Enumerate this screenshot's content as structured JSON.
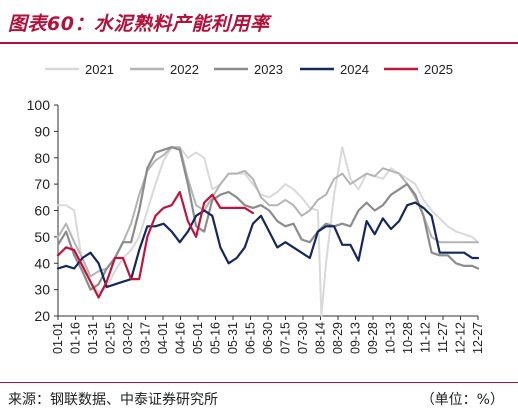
{
  "header": {
    "title": "图表60：水泥熟料产能利用率"
  },
  "footer": {
    "source": "来源：钢联数据、中泰证券研究所",
    "unit": "（单位：%）"
  },
  "chart_data": {
    "type": "line",
    "title": "图表60：水泥熟料产能利用率",
    "xlabel": "",
    "ylabel": "",
    "ylim": [
      20,
      100
    ],
    "yticks": [
      20,
      30,
      40,
      50,
      60,
      70,
      80,
      90,
      100
    ],
    "x_domain_days": [
      0,
      362
    ],
    "legend_position": "top",
    "grid": false,
    "xtick_labels": [
      "01-01",
      "01-16",
      "01-31",
      "02-15",
      "03-02",
      "03-17",
      "04-01",
      "04-16",
      "05-01",
      "05-16",
      "05-31",
      "06-15",
      "06-30",
      "07-15",
      "07-30",
      "08-14",
      "08-29",
      "09-13",
      "09-28",
      "10-13",
      "10-28",
      "11-12",
      "11-27",
      "12-12",
      "12-27"
    ],
    "series": [
      {
        "name": "2021",
        "color": "#d9d9d9",
        "width": 2,
        "x": [
          0,
          7,
          14,
          21,
          28,
          35,
          42,
          49,
          56,
          63,
          70,
          77,
          84,
          91,
          98,
          105,
          112,
          119,
          126,
          133,
          140,
          147,
          154,
          161,
          168,
          175,
          182,
          189,
          196,
          203,
          210,
          217,
          224,
          227,
          231,
          238,
          245,
          252,
          259,
          266,
          273,
          280,
          287,
          294,
          301,
          308,
          315,
          322,
          329,
          336,
          343,
          350,
          357,
          362
        ],
        "y": [
          62,
          62,
          60,
          40,
          33,
          29,
          31,
          37,
          42,
          45,
          50,
          60,
          70,
          79,
          84,
          84,
          80,
          82,
          80,
          68,
          70,
          74,
          74,
          74,
          70,
          66,
          65,
          67,
          70,
          68,
          65,
          61,
          60,
          20,
          40,
          66,
          84,
          72,
          68,
          74,
          73,
          72,
          76,
          74,
          72,
          70,
          64,
          60,
          57,
          54,
          52,
          51,
          50,
          48
        ]
      },
      {
        "name": "2022",
        "color": "#b4b4b4",
        "width": 2,
        "x": [
          0,
          7,
          14,
          21,
          28,
          35,
          42,
          49,
          56,
          63,
          70,
          77,
          84,
          91,
          98,
          105,
          112,
          119,
          126,
          133,
          140,
          147,
          154,
          161,
          168,
          175,
          182,
          189,
          196,
          203,
          210,
          217,
          224,
          231,
          238,
          245,
          252,
          259,
          266,
          273,
          280,
          287,
          294,
          301,
          308,
          315,
          322,
          329,
          336,
          343,
          350,
          357,
          362
        ],
        "y": [
          50,
          55,
          48,
          42,
          35,
          37,
          38,
          42,
          48,
          55,
          66,
          75,
          79,
          81,
          84,
          84,
          72,
          62,
          60,
          65,
          70,
          74,
          74,
          75,
          72,
          65,
          62,
          62,
          64,
          62,
          58,
          60,
          64,
          66,
          72,
          74,
          70,
          72,
          74,
          73,
          76,
          75,
          74,
          70,
          65,
          58,
          50,
          48,
          48,
          48,
          48,
          48,
          48
        ]
      },
      {
        "name": "2023",
        "color": "#8c8c8c",
        "width": 2.2,
        "x": [
          0,
          7,
          14,
          21,
          28,
          35,
          42,
          49,
          56,
          63,
          70,
          77,
          84,
          91,
          98,
          105,
          112,
          119,
          126,
          133,
          140,
          147,
          154,
          161,
          168,
          175,
          182,
          189,
          196,
          203,
          210,
          217,
          224,
          231,
          238,
          245,
          252,
          259,
          266,
          273,
          280,
          287,
          294,
          301,
          308,
          315,
          322,
          329,
          336,
          343,
          350,
          357,
          362
        ],
        "y": [
          47,
          52,
          43,
          37,
          30,
          32,
          38,
          42,
          48,
          48,
          60,
          76,
          82,
          83,
          84,
          83,
          70,
          54,
          52,
          64,
          66,
          67,
          65,
          62,
          61,
          62,
          60,
          56,
          54,
          55,
          49,
          48,
          52,
          55,
          54,
          55,
          54,
          60,
          63,
          60,
          62,
          66,
          68,
          70,
          66,
          58,
          44,
          43,
          43,
          40,
          39,
          39,
          38
        ]
      },
      {
        "name": "2024",
        "color": "#13285c",
        "width": 2.2,
        "x": [
          0,
          7,
          14,
          21,
          28,
          35,
          42,
          49,
          56,
          63,
          70,
          77,
          84,
          91,
          98,
          105,
          112,
          119,
          126,
          133,
          140,
          147,
          154,
          161,
          168,
          175,
          182,
          189,
          196,
          203,
          210,
          217,
          224,
          231,
          238,
          245,
          252,
          259,
          266,
          273,
          280,
          287,
          294,
          301,
          308,
          315,
          322,
          329,
          336,
          343,
          350,
          357,
          362
        ],
        "y": [
          38,
          39,
          38,
          42,
          44,
          40,
          31,
          32,
          33,
          34,
          45,
          54,
          54,
          55,
          52,
          48,
          52,
          58,
          60,
          58,
          46,
          40,
          42,
          46,
          55,
          58,
          52,
          46,
          48,
          46,
          44,
          42,
          52,
          54,
          54,
          47,
          47,
          41,
          56,
          51,
          57,
          53,
          56,
          62,
          63,
          61,
          58,
          44,
          44,
          44,
          44,
          42,
          42
        ]
      },
      {
        "name": "2025",
        "color": "#c0143c",
        "width": 2.2,
        "x": [
          0,
          7,
          14,
          21,
          28,
          35,
          42,
          49,
          56,
          63,
          70,
          77,
          84,
          91,
          98,
          105,
          112,
          119,
          126,
          133,
          140,
          147,
          154,
          161,
          168
        ],
        "y": [
          43,
          46,
          45,
          39,
          33,
          27,
          33,
          42,
          42,
          34,
          34,
          50,
          58,
          61,
          62,
          67,
          56,
          50,
          63,
          66,
          61,
          61,
          61,
          61,
          59
        ]
      }
    ]
  }
}
